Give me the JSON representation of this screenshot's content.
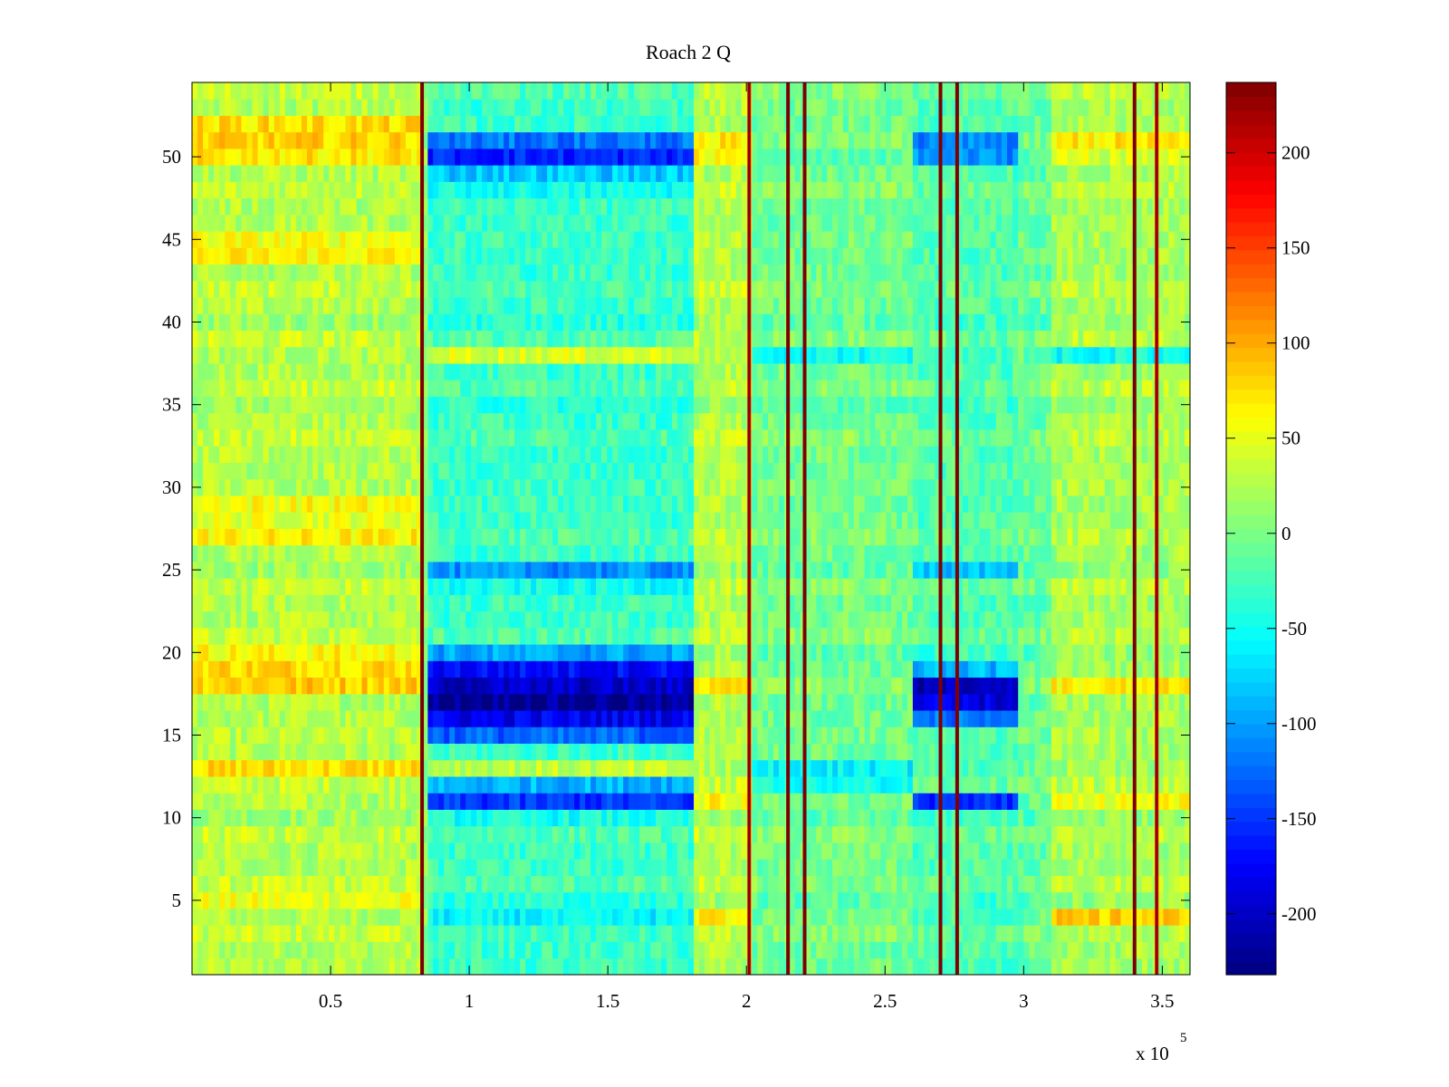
{
  "chart_data": {
    "type": "heatmap",
    "title": "Roach 2 Q",
    "xlabel": "",
    "ylabel": "",
    "x_multiplier_label": {
      "base": "x 10",
      "exponent": "5"
    },
    "xlim": [
      0,
      360000
    ],
    "ylim": [
      0.5,
      54.5
    ],
    "x_ticks": [
      50000,
      100000,
      150000,
      200000,
      250000,
      300000,
      350000
    ],
    "x_tick_labels": [
      "0.5",
      "1",
      "1.5",
      "2",
      "2.5",
      "3",
      "3.5"
    ],
    "y_ticks": [
      5,
      10,
      15,
      20,
      25,
      30,
      35,
      40,
      45,
      50
    ],
    "y_tick_labels": [
      "5",
      "10",
      "15",
      "20",
      "25",
      "30",
      "35",
      "40",
      "45",
      "50"
    ],
    "rows": 54,
    "colormap": "jet",
    "colorbar": {
      "range": [
        -232,
        237
      ],
      "ticks": [
        200,
        150,
        100,
        50,
        0,
        -50,
        -100,
        -150,
        -200
      ],
      "tick_labels": [
        "200",
        "150",
        "100",
        "50",
        "0",
        "-50",
        "-100",
        "-150",
        "-200"
      ]
    },
    "base_levels": [
      {
        "x_range": [
          0,
          83000
        ],
        "value": 25,
        "row_overrides": {
          "18": 75,
          "19": 80,
          "20": 70,
          "13": 75,
          "5": 60,
          "27": 55,
          "28": 50,
          "29": 60,
          "44": 65,
          "45": 55,
          "50": 80,
          "51": 70,
          "52": 75
        }
      },
      {
        "x_range": [
          85000,
          181000
        ],
        "value": -30,
        "row_overrides": {
          "50": -150,
          "51": -130,
          "49": -80,
          "48": -60,
          "38": 45,
          "25": -100,
          "24": -60,
          "17": -220,
          "18": -210,
          "16": -180,
          "19": -170,
          "15": -130,
          "20": -90,
          "11": -150,
          "12": -100,
          "10": -40,
          "4": -60,
          "3": -40,
          "13": 30
        }
      },
      {
        "x_range": [
          181000,
          202000
        ],
        "value": 25,
        "row_overrides": {
          "50": 70,
          "51": 60,
          "18": 60,
          "11": 60,
          "4": 70
        }
      },
      {
        "x_range": [
          202000,
          260000
        ],
        "value": -5,
        "row_overrides": {
          "13": -60,
          "12": -60,
          "38": -50
        }
      },
      {
        "x_range": [
          260000,
          298000
        ],
        "value": -20,
        "row_overrides": {
          "51": -120,
          "50": -100,
          "18": -220,
          "17": -190,
          "11": -150,
          "16": -120,
          "19": -90,
          "25": -80
        }
      },
      {
        "x_range": [
          298000,
          310000
        ],
        "value": -10,
        "row_overrides": {}
      },
      {
        "x_range": [
          310000,
          360000
        ],
        "value": 20,
        "row_overrides": {
          "51": 60,
          "50": 50,
          "18": 55,
          "11": 55,
          "4": 80,
          "38": -50
        }
      }
    ],
    "spikes": [
      {
        "x": 83000,
        "value": 237
      },
      {
        "x": 201000,
        "value": 200
      },
      {
        "x": 215000,
        "value": 237
      },
      {
        "x": 221000,
        "value": 237
      },
      {
        "x": 270000,
        "value": 237
      },
      {
        "x": 276000,
        "value": 237
      },
      {
        "x": 340000,
        "value": 237
      },
      {
        "x": 348000,
        "value": 200
      }
    ]
  }
}
